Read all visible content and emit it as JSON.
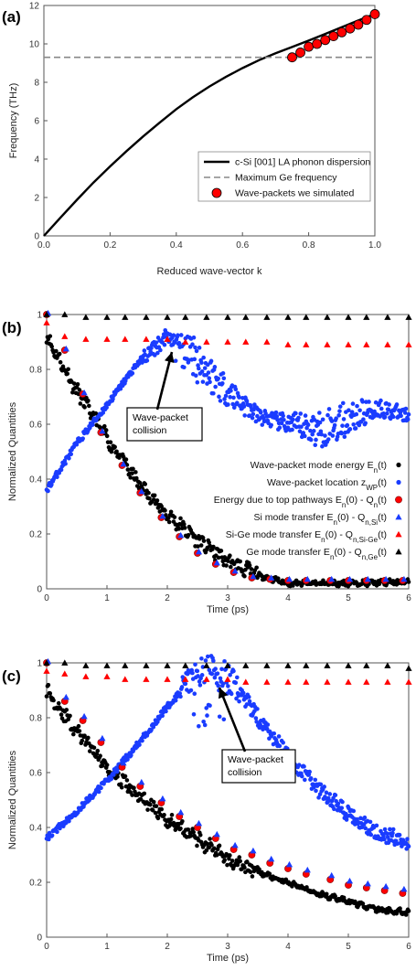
{
  "chart_data": [
    {
      "panel": "(a)",
      "type": "line",
      "xlabel": "Reduced wave-vector k",
      "ylabel": "Frequency (THz)",
      "xlim": [
        0,
        1
      ],
      "ylim": [
        0,
        12
      ],
      "xticks": [
        "0.0",
        "0.2",
        "0.4",
        "0.6",
        "0.8",
        "1.0"
      ],
      "yticks": [
        "0",
        "2",
        "4",
        "6",
        "8",
        "10",
        "12"
      ],
      "legend_position": "bottom-right",
      "series": [
        {
          "name": "c-Si [001] LA phonon dispersion",
          "color": "#000000",
          "x": [
            0,
            0.05,
            0.1,
            0.15,
            0.2,
            0.25,
            0.3,
            0.35,
            0.4,
            0.45,
            0.5,
            0.55,
            0.6,
            0.65,
            0.7,
            0.75,
            0.8,
            0.85,
            0.9,
            0.95,
            1.0
          ],
          "y": [
            0,
            0.95,
            1.88,
            2.78,
            3.62,
            4.42,
            5.18,
            5.9,
            6.6,
            7.22,
            7.78,
            8.28,
            8.74,
            9.15,
            9.51,
            9.84,
            10.17,
            10.52,
            10.87,
            11.22,
            11.55
          ]
        },
        {
          "name": "Maximum Ge frequency",
          "color": "#888888",
          "y": 9.3
        },
        {
          "name": "Wave-packets we simulated",
          "color": "#ff0000",
          "x": [
            0.75,
            0.775,
            0.8,
            0.825,
            0.85,
            0.875,
            0.9,
            0.925,
            0.95,
            0.975,
            1.0
          ],
          "y": [
            9.3,
            9.55,
            9.85,
            10.0,
            10.2,
            10.4,
            10.6,
            10.8,
            11.0,
            11.25,
            11.55
          ]
        }
      ]
    },
    {
      "panel": "(b)",
      "type": "scatter",
      "xlabel": "Time (ps)",
      "ylabel": "Normalized Quantities",
      "xlim": [
        0,
        6
      ],
      "ylim": [
        0,
        1
      ],
      "xticks": [
        "0",
        "1",
        "2",
        "3",
        "4",
        "5",
        "6"
      ],
      "yticks": [
        "0",
        "0.2",
        "0.4",
        "0.6",
        "0.8",
        "1"
      ],
      "annotation": "Wave-packet collision",
      "legend_position": "right",
      "series": [
        {
          "name": "Wave-packet mode energy E_n(t)",
          "name_main": "Wave-packet mode energy E",
          "name_sub": "n",
          "name_tail": "(t)",
          "color": "#000000",
          "marker": "dot",
          "x_range": [
            0,
            6
          ],
          "y_curve": [
            [
              0,
              0.92
            ],
            [
              0.5,
              0.72
            ],
            [
              1,
              0.55
            ],
            [
              1.5,
              0.39
            ],
            [
              2,
              0.27
            ],
            [
              2.5,
              0.18
            ],
            [
              3,
              0.1
            ],
            [
              3.5,
              0.05
            ],
            [
              4,
              0.02
            ],
            [
              5,
              0.02
            ],
            [
              6,
              0.025
            ]
          ]
        },
        {
          "name": "Wave-packet location z_WP(t)",
          "name_main": "Wave-packet location z",
          "name_sub": "WP",
          "name_tail": "(t)",
          "color": "#1a3cff",
          "marker": "dot",
          "y_curve": [
            [
              0,
              0.36
            ],
            [
              0.5,
              0.53
            ],
            [
              1,
              0.67
            ],
            [
              1.5,
              0.82
            ],
            [
              2,
              0.92
            ],
            [
              2.3,
              0.89
            ],
            [
              2.8,
              0.76
            ],
            [
              3.5,
              0.63
            ],
            [
              4,
              0.6
            ],
            [
              4.5,
              0.58
            ],
            [
              5,
              0.62
            ],
            [
              5.5,
              0.66
            ],
            [
              6,
              0.63
            ]
          ]
        },
        {
          "name": "Energy due to top pathways E_n(0) - Q_n(t)",
          "name_main": "Energy due to top pathways E",
          "name_sub": "n",
          "name_tail": "(0) - Q",
          "name_sub2": "n",
          "name_tail2": "(t)",
          "color": "#ff0000",
          "marker": "circle",
          "x": [
            0,
            0.3,
            0.6,
            0.9,
            1.25,
            1.55,
            1.9,
            2.2,
            2.5,
            2.8,
            3.1,
            3.4,
            3.7,
            4.0,
            4.3,
            4.7,
            5.0,
            5.3,
            5.6,
            5.9
          ],
          "y": [
            1.0,
            0.87,
            0.71,
            0.57,
            0.45,
            0.35,
            0.26,
            0.19,
            0.13,
            0.09,
            0.06,
            0.04,
            0.035,
            0.03,
            0.03,
            0.03,
            0.03,
            0.03,
            0.03,
            0.03
          ]
        },
        {
          "name": "Si mode transfer E_n(0) - Q_n,Si(t)",
          "name_main": "Si mode transfer E",
          "name_sub": "n",
          "name_tail": "(0) - Q",
          "name_sub2": "n,Si",
          "name_tail2": "(t)",
          "color": "#1a3cff",
          "marker": "triangle",
          "x": [
            0,
            0.3,
            0.6,
            0.9,
            1.25,
            1.55,
            1.9,
            2.2,
            2.5,
            2.8,
            3.1,
            3.4,
            3.7,
            4.0,
            4.3,
            4.7,
            5.0,
            5.3,
            5.6,
            5.9
          ],
          "y": [
            1.0,
            0.87,
            0.71,
            0.57,
            0.45,
            0.35,
            0.26,
            0.19,
            0.13,
            0.09,
            0.06,
            0.04,
            0.035,
            0.03,
            0.03,
            0.03,
            0.03,
            0.03,
            0.03,
            0.03
          ]
        },
        {
          "name": "Si-Ge mode transfer E_n(0) - Q_n,Si-Ge(t)",
          "name_main": "Si-Ge mode transfer E",
          "name_sub": "n",
          "name_tail": "(0) - Q",
          "name_sub2": "n,Si-Ge",
          "name_tail2": "(t)",
          "color": "#ff0000",
          "marker": "triangle",
          "x": [
            0,
            0.3,
            0.65,
            1.0,
            1.3,
            1.65,
            2.0,
            2.3,
            2.65,
            3.0,
            3.3,
            3.65,
            4.0,
            4.3,
            4.65,
            5.0,
            5.3,
            5.65,
            6.0
          ],
          "y": [
            0.97,
            0.92,
            0.91,
            0.91,
            0.91,
            0.91,
            0.91,
            0.9,
            0.9,
            0.9,
            0.9,
            0.9,
            0.89,
            0.89,
            0.89,
            0.89,
            0.89,
            0.89,
            0.89
          ]
        },
        {
          "name": "Ge mode transfer E_n(0) - Q_n,Ge(t)",
          "name_main": "Ge mode transfer E",
          "name_sub": "n",
          "name_tail": "(0) - Q",
          "name_sub2": "n,Ge",
          "name_tail2": "(t)",
          "color": "#000000",
          "marker": "triangle",
          "x": [
            0,
            0.3,
            0.65,
            1.0,
            1.3,
            1.65,
            2.0,
            2.3,
            2.65,
            3.0,
            3.3,
            3.65,
            4.0,
            4.3,
            4.65,
            5.0,
            5.3,
            5.65,
            6.0
          ],
          "y": [
            1.0,
            1.0,
            0.99,
            0.99,
            0.99,
            0.99,
            0.99,
            0.99,
            0.99,
            0.99,
            0.99,
            0.99,
            0.99,
            0.99,
            0.99,
            0.99,
            0.99,
            0.99,
            0.99
          ]
        }
      ]
    },
    {
      "panel": "(c)",
      "type": "scatter",
      "xlabel": "Time (ps)",
      "ylabel": "Normalized Quantities",
      "xlim": [
        0,
        6
      ],
      "ylim": [
        0,
        1
      ],
      "xticks": [
        "0",
        "1",
        "2",
        "3",
        "4",
        "5",
        "6"
      ],
      "yticks": [
        "0",
        "0.2",
        "0.4",
        "0.6",
        "0.8",
        "1"
      ],
      "annotation": "Wave-packet collision",
      "series": [
        {
          "name": "Wave-packet mode energy",
          "color": "#000000",
          "marker": "dot",
          "y_curve": [
            [
              0,
              0.9
            ],
            [
              0.5,
              0.75
            ],
            [
              1,
              0.62
            ],
            [
              1.5,
              0.52
            ],
            [
              2,
              0.43
            ],
            [
              2.5,
              0.36
            ],
            [
              3,
              0.28
            ],
            [
              3.5,
              0.24
            ],
            [
              4,
              0.2
            ],
            [
              4.5,
              0.16
            ],
            [
              5,
              0.13
            ],
            [
              5.5,
              0.1
            ],
            [
              6,
              0.09
            ]
          ]
        },
        {
          "name": "Wave-packet location",
          "color": "#1a3cff",
          "marker": "dot",
          "y_curve": [
            [
              0,
              0.36
            ],
            [
              0.5,
              0.46
            ],
            [
              1,
              0.57
            ],
            [
              1.5,
              0.7
            ],
            [
              2,
              0.84
            ],
            [
              2.5,
              0.96
            ],
            [
              2.8,
              0.99
            ],
            [
              3.2,
              0.9
            ],
            [
              3.5,
              0.8
            ],
            [
              4,
              0.66
            ],
            [
              4.5,
              0.54
            ],
            [
              5,
              0.45
            ],
            [
              5.5,
              0.38
            ],
            [
              6,
              0.35
            ]
          ]
        },
        {
          "name": "Energy due to top pathways",
          "color": "#ff0000",
          "marker": "circle",
          "x": [
            0,
            0.3,
            0.6,
            0.9,
            1.25,
            1.55,
            1.9,
            2.2,
            2.5,
            2.8,
            3.1,
            3.4,
            3.7,
            4.0,
            4.3,
            4.7,
            5.0,
            5.3,
            5.6,
            5.9
          ],
          "y": [
            1.0,
            0.86,
            0.79,
            0.71,
            0.62,
            0.55,
            0.49,
            0.44,
            0.4,
            0.36,
            0.32,
            0.3,
            0.27,
            0.25,
            0.23,
            0.21,
            0.19,
            0.18,
            0.17,
            0.16
          ]
        },
        {
          "name": "Si mode transfer",
          "color": "#1a3cff",
          "marker": "triangle",
          "x": [
            0,
            0.3,
            0.6,
            0.9,
            1.25,
            1.55,
            1.9,
            2.2,
            2.5,
            2.8,
            3.1,
            3.4,
            3.7,
            4.0,
            4.3,
            4.7,
            5.0,
            5.3,
            5.6,
            5.9
          ],
          "y": [
            1.0,
            0.87,
            0.8,
            0.72,
            0.63,
            0.56,
            0.5,
            0.45,
            0.41,
            0.37,
            0.33,
            0.31,
            0.28,
            0.26,
            0.24,
            0.22,
            0.2,
            0.19,
            0.18,
            0.17
          ]
        },
        {
          "name": "Si-Ge mode transfer",
          "color": "#ff0000",
          "marker": "triangle",
          "x": [
            0,
            0.3,
            0.65,
            1.0,
            1.3,
            1.65,
            2.0,
            2.3,
            2.65,
            3.0,
            3.3,
            3.65,
            4.0,
            4.3,
            4.65,
            5.0,
            5.3,
            5.65,
            6.0
          ],
          "y": [
            0.97,
            0.96,
            0.95,
            0.95,
            0.94,
            0.94,
            0.94,
            0.94,
            0.94,
            0.94,
            0.93,
            0.93,
            0.93,
            0.93,
            0.93,
            0.93,
            0.93,
            0.93,
            0.93
          ]
        },
        {
          "name": "Ge mode transfer",
          "color": "#000000",
          "marker": "triangle",
          "x": [
            0,
            0.3,
            0.65,
            1.0,
            1.3,
            1.65,
            2.0,
            2.3,
            2.65,
            3.0,
            3.3,
            3.65,
            4.0,
            4.3,
            4.65,
            5.0,
            5.3,
            5.65,
            6.0
          ],
          "y": [
            1.0,
            1.0,
            0.99,
            0.99,
            0.99,
            0.99,
            0.99,
            0.99,
            0.99,
            0.99,
            0.99,
            0.99,
            0.99,
            0.99,
            0.99,
            0.99,
            0.99,
            0.99,
            0.98
          ]
        }
      ]
    }
  ]
}
